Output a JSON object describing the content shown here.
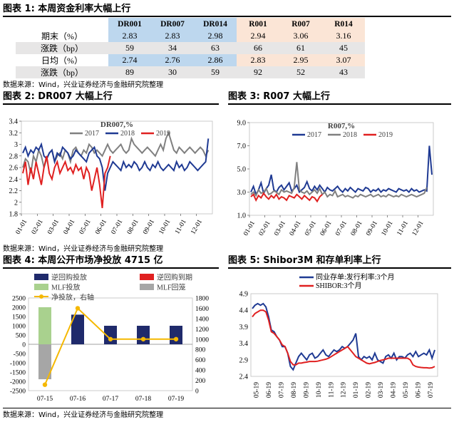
{
  "fig1": {
    "header": "图表 1:  本周资金利率大幅上行",
    "columns": [
      "DR001",
      "DR007",
      "DR014",
      "R001",
      "R007",
      "R014"
    ],
    "rows": [
      {
        "label": "期末（%）",
        "values": [
          "2.83",
          "2.83",
          "2.98",
          "2.94",
          "3.06",
          "3.16"
        ]
      },
      {
        "label": "涨跌（bp）",
        "values": [
          "59",
          "34",
          "63",
          "66",
          "61",
          "45"
        ]
      },
      {
        "label": "日均（%）",
        "values": [
          "2.74",
          "2.76",
          "2.86",
          "2.83",
          "2.95",
          "3.07"
        ]
      },
      {
        "label": "涨跌（bp）",
        "values": [
          "89",
          "30",
          "59",
          "92",
          "52",
          "43"
        ]
      }
    ],
    "source": "数据来源：Wind，兴业证券经济与金融研究院整理"
  },
  "fig2": {
    "header": "图表 2:  DR007 大幅上行",
    "source": "数据来源：Wind，兴业证券经济与金融研究院整理"
  },
  "fig3": {
    "header": "图表 3:  R007 大幅上行"
  },
  "fig4": {
    "header": "图表 4:  本周公开市场净投放 4715 亿",
    "source": "数据来源：Wind，兴业证券经济与金融研究院整理"
  },
  "fig5": {
    "header": "图表 5:  Shibor3M 和存单利率上行"
  },
  "chart_data": [
    {
      "id": "dr007",
      "type": "line",
      "title": "DR007,%",
      "ylim": [
        1.8,
        3.4
      ],
      "yticks": [
        1.8,
        2.0,
        2.2,
        2.4,
        2.6,
        2.8,
        3.0,
        3.2,
        3.4
      ],
      "ytick_labels": [
        "1.8",
        "2",
        "2.2",
        "2.4",
        "2.6",
        "2.8",
        "3",
        "3.2",
        "3.4"
      ],
      "x_labels": [
        "01-01",
        "02-01",
        "03-01",
        "04-01",
        "05-01",
        "06-01",
        "07-01",
        "08-01",
        "09-01",
        "10-01",
        "11-01",
        "12-01"
      ],
      "legend": "top-center",
      "series": [
        {
          "name": "2017",
          "color": "#808080",
          "values": [
            2.6,
            2.75,
            2.7,
            2.5,
            2.8,
            2.7,
            2.9,
            2.8,
            2.6,
            2.75,
            2.85,
            2.9,
            2.7,
            2.8,
            2.85,
            2.75,
            2.9,
            2.85,
            2.7,
            2.9,
            2.95,
            2.85,
            2.8,
            2.9,
            2.85,
            3.0,
            2.95,
            2.85,
            2.9,
            2.85,
            2.8,
            2.9,
            3.0,
            2.9,
            2.85,
            2.9,
            2.95,
            3.0,
            2.9,
            2.85,
            2.9,
            3.1,
            3.0,
            2.95,
            2.9,
            2.85,
            2.9,
            2.95,
            2.9,
            2.85,
            2.8,
            2.9,
            3.0,
            2.9,
            3.1,
            3.2,
            3.05,
            2.9,
            2.85,
            2.95,
            2.9,
            2.85,
            2.9,
            2.95,
            2.9,
            2.85,
            2.9,
            2.95,
            2.9,
            2.8,
            2.9
          ]
        },
        {
          "name": "2018",
          "color": "#1f3a93",
          "values": [
            2.85,
            2.95,
            2.8,
            2.9,
            2.85,
            2.95,
            2.9,
            3.0,
            2.8,
            2.75,
            2.85,
            2.9,
            2.7,
            2.85,
            2.8,
            2.95,
            2.9,
            2.85,
            2.75,
            2.8,
            2.9,
            2.85,
            2.8,
            2.75,
            2.7,
            2.85,
            2.9,
            2.95,
            2.8,
            2.75,
            2.6,
            2.2,
            2.5,
            2.6,
            2.7,
            2.65,
            2.6,
            2.55,
            2.7,
            2.6,
            2.65,
            2.6,
            2.7,
            2.65,
            2.55,
            2.6,
            2.7,
            2.6,
            2.55,
            2.65,
            2.6,
            2.7,
            2.6,
            2.55,
            2.6,
            2.65,
            2.6,
            2.55,
            2.7,
            2.6,
            2.65,
            2.55,
            2.6,
            2.7,
            2.65,
            2.6,
            2.55,
            2.6,
            2.65,
            2.7,
            3.1
          ]
        },
        {
          "name": "2019",
          "color": "#e02020",
          "values": [
            2.5,
            2.7,
            2.3,
            2.6,
            2.4,
            2.7,
            2.5,
            2.3,
            2.6,
            2.8,
            2.5,
            2.4,
            2.6,
            2.7,
            2.5,
            2.6,
            2.7,
            2.55,
            2.6,
            2.5,
            2.65,
            2.55,
            2.6,
            2.4,
            2.6,
            2.5,
            2.2,
            2.4,
            2.6,
            2.3,
            1.9,
            2.5,
            2.6,
            2.8
          ]
        }
      ]
    },
    {
      "id": "r007",
      "type": "line",
      "title": "R007,%",
      "ylim": [
        1.0,
        9.0
      ],
      "yticks": [
        1.0,
        3.0,
        5.0,
        7.0,
        9.0
      ],
      "ytick_labels": [
        "1.0",
        "3.0",
        "5.0",
        "7.0",
        "9.0"
      ],
      "x_labels": [
        "01-01",
        "02-01",
        "03-01",
        "04-01",
        "05-01",
        "06-01",
        "07-01",
        "08-01",
        "09-01",
        "10-01",
        "11-01",
        "12-01"
      ],
      "legend": "top-center",
      "series": [
        {
          "name": "2017",
          "color": "#1f3a93",
          "values": [
            3.0,
            3.5,
            2.8,
            3.2,
            3.8,
            2.9,
            3.3,
            3.6,
            4.5,
            3.2,
            3.0,
            3.4,
            3.6,
            3.2,
            3.5,
            3.8,
            3.1,
            3.3,
            3.6,
            3.0,
            3.2,
            3.4,
            3.9,
            3.3,
            3.1,
            3.5,
            3.2,
            3.6,
            3.3,
            3.0,
            3.4,
            3.2,
            3.1,
            3.3,
            3.5,
            3.2,
            3.0,
            3.3,
            3.1,
            3.4,
            3.2,
            3.0,
            3.3,
            3.2,
            3.1,
            3.4,
            3.3,
            3.0,
            3.2,
            3.1,
            3.3,
            3.0,
            3.2,
            3.1,
            3.3,
            3.2,
            3.1,
            3.0,
            3.3,
            3.2,
            3.1,
            3.2,
            3.0,
            3.3,
            3.1,
            3.2,
            3.0,
            3.1,
            3.2,
            3.1,
            7.0,
            4.5
          ]
        },
        {
          "name": "2018",
          "color": "#808080",
          "values": [
            2.8,
            3.0,
            2.7,
            3.2,
            2.9,
            3.0,
            3.3,
            2.8,
            2.9,
            3.1,
            3.0,
            2.8,
            3.2,
            3.0,
            3.1,
            3.0,
            2.9,
            3.4,
            5.6,
            3.2,
            3.0,
            2.9,
            3.1,
            2.8,
            3.0,
            3.2,
            2.9,
            3.3,
            2.8,
            3.0,
            2.6,
            2.8,
            2.7,
            3.1,
            2.6,
            2.7,
            2.8,
            2.6,
            2.7,
            2.6,
            2.5,
            2.7,
            2.6,
            2.8,
            2.7,
            2.6,
            2.7,
            2.8,
            2.6,
            2.7,
            2.8,
            2.6,
            2.7,
            2.6,
            2.8,
            2.7,
            2.6,
            2.7,
            2.6,
            2.8,
            2.7,
            2.6,
            2.7,
            2.8,
            2.7,
            2.6,
            2.7,
            2.8,
            2.9,
            3.4
          ]
        },
        {
          "name": "2019",
          "color": "#e02020",
          "values": [
            2.6,
            2.8,
            2.3,
            2.7,
            2.5,
            2.9,
            2.6,
            2.4,
            2.7,
            2.5,
            2.8,
            2.4,
            2.6,
            2.5,
            2.3,
            2.7,
            2.6,
            2.5,
            2.8,
            2.6,
            2.4,
            2.7,
            2.5,
            2.3,
            2.6,
            2.5,
            2.2,
            2.6,
            2.8
          ]
        }
      ]
    },
    {
      "id": "omo",
      "type": "bar",
      "categories": [
        "07-15",
        "07-16",
        "07-17",
        "07-18",
        "07-19"
      ],
      "ylim_left": [
        -2500,
        2500
      ],
      "yticks_left": [
        -2500,
        -2000,
        -1500,
        -1000,
        -500,
        0,
        500,
        1000,
        1500,
        2000,
        2500
      ],
      "ylim_right": [
        0,
        1800
      ],
      "yticks_right": [
        0,
        200,
        400,
        600,
        800,
        1000,
        1200,
        1400,
        1600,
        1800
      ],
      "legend": "top",
      "series": [
        {
          "name": "逆回购投放",
          "color": "#1f2a6b",
          "values": [
            0,
            1600,
            1000,
            1000,
            1000
          ]
        },
        {
          "name": "逆回购到期",
          "color": "#e02020",
          "values": [
            0,
            0,
            0,
            0,
            0
          ]
        },
        {
          "name": "MLF投放",
          "color": "#a9d18e",
          "values": [
            2000,
            0,
            0,
            0,
            0
          ]
        },
        {
          "name": "MLF回笼",
          "color": "#a6a6a6",
          "values": [
            -1885,
            0,
            0,
            0,
            0
          ]
        },
        {
          "name": "净投放，右轴",
          "color": "#f5b800",
          "axis": "right",
          "values": [
            115,
            1600,
            1000,
            1000,
            1000
          ]
        }
      ]
    },
    {
      "id": "shibor",
      "type": "line",
      "ylim": [
        2.4,
        4.9
      ],
      "yticks": [
        2.4,
        2.9,
        3.4,
        3.9,
        4.4,
        4.9
      ],
      "ytick_labels": [
        "2.4",
        "2.9",
        "3.4",
        "3.9",
        "4.4",
        "4.9"
      ],
      "x_labels": [
        "05-19",
        "06-19",
        "07-19",
        "08-19",
        "09-19",
        "10-19",
        "11-19",
        "12-19",
        "01-19",
        "02-19",
        "03-19",
        "04-19",
        "05-19",
        "06-19",
        "07-19"
      ],
      "legend": "top",
      "series": [
        {
          "name": "同业存单:发行利率:3个月",
          "color": "#1f3a93",
          "values": [
            4.45,
            4.55,
            4.6,
            4.55,
            4.6,
            4.5,
            4.2,
            3.8,
            3.75,
            3.6,
            3.5,
            3.3,
            3.3,
            3.1,
            2.7,
            2.6,
            2.8,
            3.0,
            3.1,
            3.0,
            2.9,
            3.05,
            3.1,
            2.95,
            3.0,
            3.1,
            3.2,
            3.05,
            3.0,
            3.1,
            3.2,
            3.15,
            3.2,
            3.3,
            3.25,
            3.3,
            3.4,
            3.5,
            3.7,
            3.0,
            2.9,
            3.0,
            2.95,
            3.0,
            2.9,
            3.1,
            2.9,
            2.85,
            2.8,
            3.0,
            3.05,
            2.95,
            3.1,
            2.9,
            3.0,
            3.0,
            2.95,
            3.05,
            3.1,
            3.0,
            3.15,
            3.0,
            3.05,
            3.1,
            3.05,
            3.2,
            2.95,
            3.2
          ]
        },
        {
          "name": "SHIBOR:3个月",
          "color": "#e02020",
          "values": [
            4.2,
            4.3,
            4.35,
            4.4,
            4.4,
            4.35,
            4.1,
            3.75,
            3.7,
            3.6,
            3.5,
            3.35,
            3.3,
            3.1,
            2.85,
            2.75,
            2.75,
            2.8,
            2.8,
            2.82,
            2.83,
            2.85,
            2.85,
            2.85,
            2.86,
            2.88,
            2.9,
            2.92,
            2.95,
            3.0,
            3.05,
            3.1,
            3.15,
            3.2,
            3.25,
            3.3,
            3.2,
            3.1,
            3.0,
            2.95,
            2.9,
            2.85,
            2.8,
            2.78,
            2.8,
            2.82,
            2.85,
            2.88,
            2.9,
            2.92,
            2.95,
            2.95,
            2.95,
            2.95,
            2.95,
            2.95,
            2.95,
            2.95,
            2.9,
            2.75,
            2.7,
            2.68,
            2.67,
            2.66,
            2.66,
            2.65,
            2.66,
            2.7
          ]
        }
      ]
    }
  ]
}
